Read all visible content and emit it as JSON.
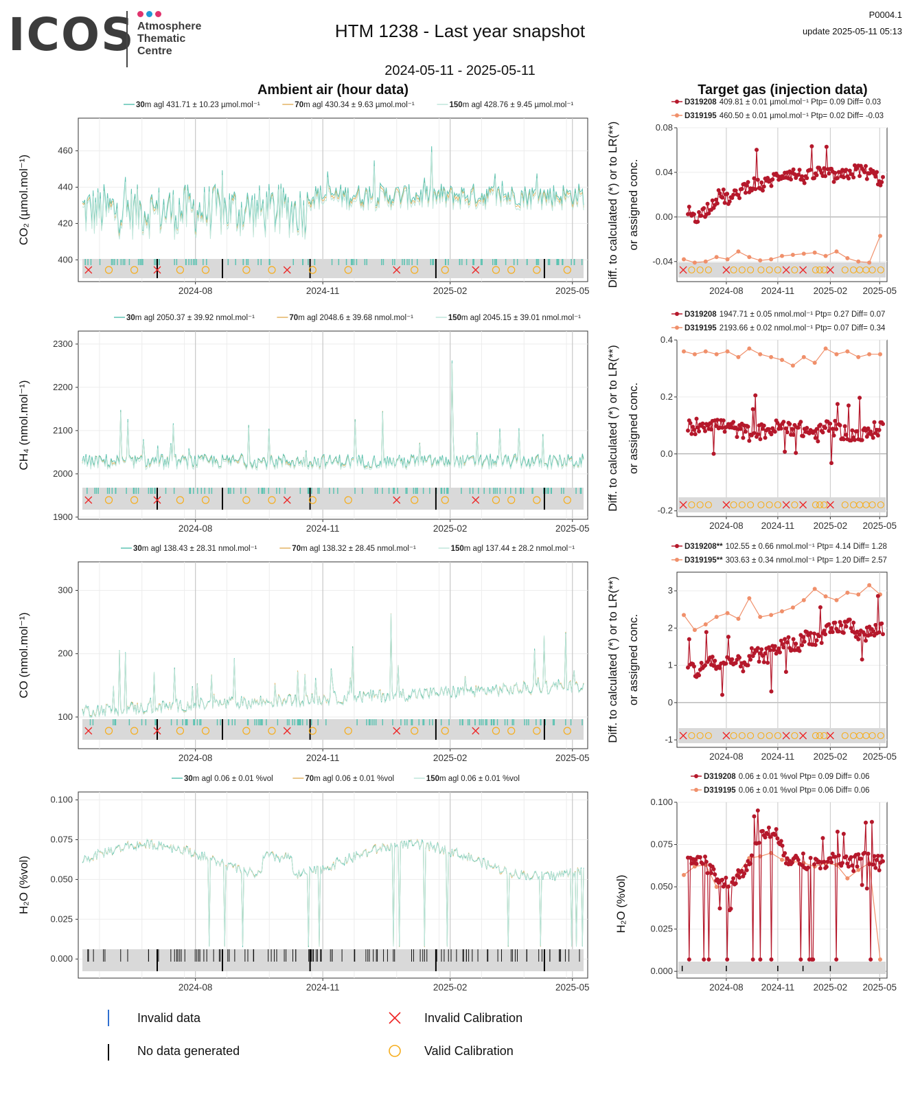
{
  "header": {
    "logo_word": "ICOS",
    "logo_sub": [
      "Atmosphere",
      "Thematic",
      "Centre"
    ],
    "title": "HTM 1238 - Last year snapshot",
    "date_range": "2024-05-11 - 2025-05-11",
    "code": "P0004.1",
    "update": "update  2025-05-11 05:13"
  },
  "sections": {
    "ambient_title": "Ambient air (hour data)",
    "target_title": "Target gas (injection data)"
  },
  "colors": {
    "m30": "#5cc3b2",
    "m70": "#e3b464",
    "m150": "#bfe6db",
    "t208": "#b5182b",
    "t195": "#f0906b",
    "cal_invalid": "#ee2222",
    "cal_valid": "#f6ad1c",
    "band": "#d9d9d9",
    "grid_major": "#c8c8c8",
    "grid_minor": "#ececec"
  },
  "x_ticks": [
    "2024-08",
    "2024-11",
    "2025-02",
    "2025-05"
  ],
  "legends": {
    "co2": [
      {
        "label": "30",
        "text": "m agl 431.71 ± 10.23 µmol.mol⁻¹"
      },
      {
        "label": "70",
        "text": "m agl 430.34 ± 9.63 µmol.mol⁻¹"
      },
      {
        "label": "150",
        "text": "m agl 428.76 ± 9.45 µmol.mol⁻¹"
      }
    ],
    "ch4": [
      {
        "label": "30",
        "text": "m agl 2050.37 ± 39.92 nmol.mol⁻¹"
      },
      {
        "label": "70",
        "text": "m agl 2048.6 ± 39.68 nmol.mol⁻¹"
      },
      {
        "label": "150",
        "text": "m agl 2045.15 ± 39.01 nmol.mol⁻¹"
      }
    ],
    "co": [
      {
        "label": "30",
        "text": "m agl 138.43 ± 28.31 nmol.mol⁻¹"
      },
      {
        "label": "70",
        "text": "m agl 138.32 ± 28.45 nmol.mol⁻¹"
      },
      {
        "label": "150",
        "text": "m agl 137.44 ± 28.2 nmol.mol⁻¹"
      }
    ],
    "h2o": [
      {
        "label": "30",
        "text": "m agl 0.06 ± 0.01 %vol"
      },
      {
        "label": "70",
        "text": "m agl 0.06 ± 0.01 %vol"
      },
      {
        "label": "150",
        "text": "m agl 0.06 ± 0.01 %vol"
      }
    ]
  },
  "target_legends": {
    "co2": [
      {
        "id": "D319208",
        "text": "409.81 ± 0.01 µmol.mol⁻¹ Ptp= 0.09 Diff= 0.03"
      },
      {
        "id": "D319195",
        "text": "460.50 ± 0.01 µmol.mol⁻¹ Ptp= 0.02 Diff= -0.03"
      }
    ],
    "ch4": [
      {
        "id": "D319208",
        "text": "1947.71 ± 0.05 nmol.mol⁻¹ Ptp= 0.27 Diff= 0.07"
      },
      {
        "id": "D319195",
        "text": "2193.66 ± 0.02 nmol.mol⁻¹ Ptp= 0.07 Diff= 0.34"
      }
    ],
    "co": [
      {
        "id": "D319208**",
        "text": "102.55 ± 0.66 nmol.mol⁻¹ Ptp= 4.14 Diff= 1.28"
      },
      {
        "id": "D319195**",
        "text": "303.63 ± 0.34 nmol.mol⁻¹ Ptp= 1.20 Diff= 2.57"
      }
    ],
    "h2o": [
      {
        "id": "D319208",
        "text": "0.06 ± 0.01 %vol Ptp= 0.09 Diff= 0.06"
      },
      {
        "id": "D319195",
        "text": "0.06 ± 0.01 %vol Ptp= 0.06 Diff= 0.06"
      }
    ]
  },
  "y_labels": {
    "co2": "CO₂ (µmol.mol⁻¹)",
    "ch4": "CH₄ (nmol.mol⁻¹)",
    "co": "CO (nmol.mol⁻¹)",
    "h2o": "H₂O (%vol)",
    "diff_line1": "Diff. to calculated (*) or to LR(**)",
    "diff_line2": "or assigned conc.",
    "h2o_target": "H₂O (%vol)"
  },
  "bottom_legend": {
    "invalid_data": "Invalid data",
    "no_data": "No data generated",
    "invalid_cal": "Invalid Calibration",
    "valid_cal": "Valid Calibration"
  },
  "chart_data": [
    {
      "id": "co2_ambient",
      "type": "line",
      "ylim": [
        388,
        478
      ],
      "yticks": [
        400,
        420,
        440,
        460
      ],
      "grid": true,
      "series": [
        {
          "name": "30m agl",
          "mean": 431.71,
          "sd": 10.23
        },
        {
          "name": "70m agl",
          "mean": 430.34,
          "sd": 9.63
        },
        {
          "name": "150m agl",
          "mean": 428.76,
          "sd": 9.45
        }
      ]
    },
    {
      "id": "ch4_ambient",
      "type": "line",
      "ylim": [
        1895,
        2330
      ],
      "yticks": [
        1900,
        2000,
        2100,
        2200,
        2300
      ],
      "grid": true,
      "series": [
        {
          "name": "30m agl",
          "mean": 2050.37,
          "sd": 39.92
        },
        {
          "name": "70m agl",
          "mean": 2048.6,
          "sd": 39.68
        },
        {
          "name": "150m agl",
          "mean": 2045.15,
          "sd": 39.01
        }
      ]
    },
    {
      "id": "co_ambient",
      "type": "line",
      "ylim": [
        50,
        345
      ],
      "yticks": [
        100,
        200,
        300
      ],
      "grid": true,
      "series": [
        {
          "name": "30m agl",
          "mean": 138.43,
          "sd": 28.31
        },
        {
          "name": "70m agl",
          "mean": 138.32,
          "sd": 28.45
        },
        {
          "name": "150m agl",
          "mean": 137.44,
          "sd": 28.2
        }
      ]
    },
    {
      "id": "h2o_ambient",
      "type": "line",
      "ylim": [
        -0.012,
        0.105
      ],
      "yticks": [
        0.0,
        0.025,
        0.05,
        0.075,
        0.1
      ],
      "grid": true,
      "series": [
        {
          "name": "30m agl",
          "mean": 0.06,
          "sd": 0.01
        },
        {
          "name": "70m agl",
          "mean": 0.06,
          "sd": 0.01
        },
        {
          "name": "150m agl",
          "mean": 0.06,
          "sd": 0.01
        }
      ]
    },
    {
      "id": "co2_target",
      "type": "line",
      "ylim": [
        -0.058,
        0.08
      ],
      "yticks": [
        -0.04,
        0.0,
        0.04,
        0.08
      ],
      "grid": true,
      "series": [
        {
          "name": "D319208",
          "values": [
            0.005,
            0.0,
            0.01,
            0.02,
            0.015,
            0.025,
            0.03,
            0.028,
            0.035,
            0.04,
            0.038,
            0.035,
            0.04,
            0.038,
            0.035,
            0.04,
            0.042,
            0.038,
            0.032
          ]
        },
        {
          "name": "D319195",
          "values": [
            -0.038,
            -0.041,
            -0.04,
            -0.036,
            -0.038,
            -0.031,
            -0.036,
            -0.039,
            -0.038,
            -0.035,
            -0.034,
            -0.033,
            -0.032,
            -0.035,
            -0.031,
            -0.037,
            -0.04,
            -0.041,
            -0.017
          ]
        }
      ]
    },
    {
      "id": "ch4_target",
      "type": "line",
      "ylim": [
        -0.22,
        0.4
      ],
      "yticks": [
        -0.2,
        0.0,
        0.2,
        0.4
      ],
      "grid": true,
      "series": [
        {
          "name": "D319208",
          "values": [
            0.09,
            0.1,
            0.11,
            0.1,
            0.09,
            0.08,
            0.07,
            0.08,
            0.09,
            0.1,
            0.09,
            0.08,
            0.07,
            0.1,
            0.08,
            0.07,
            0.06,
            0.08,
            0.1
          ]
        },
        {
          "name": "D319195",
          "values": [
            0.36,
            0.35,
            0.36,
            0.35,
            0.36,
            0.34,
            0.37,
            0.35,
            0.34,
            0.33,
            0.31,
            0.34,
            0.32,
            0.37,
            0.35,
            0.36,
            0.34,
            0.35,
            0.35
          ]
        }
      ]
    },
    {
      "id": "co_target",
      "type": "line",
      "ylim": [
        -1.2,
        3.5
      ],
      "yticks": [
        -1,
        0,
        1,
        2,
        3
      ],
      "grid": true,
      "series": [
        {
          "name": "D319208",
          "values": [
            1.0,
            0.8,
            1.2,
            0.9,
            1.1,
            1.0,
            1.3,
            1.2,
            1.4,
            1.6,
            1.5,
            1.8,
            1.7,
            1.9,
            2.0,
            2.1,
            1.8,
            1.9,
            2.0
          ]
        },
        {
          "name": "D319195",
          "values": [
            2.35,
            1.95,
            2.1,
            2.3,
            2.4,
            2.25,
            2.8,
            2.3,
            2.35,
            2.45,
            2.55,
            2.75,
            3.05,
            2.85,
            2.75,
            2.95,
            2.9,
            3.15,
            2.9
          ]
        }
      ]
    },
    {
      "id": "h2o_target",
      "type": "line",
      "ylim": [
        -0.004,
        0.1
      ],
      "yticks": [
        0.0,
        0.025,
        0.05,
        0.075,
        0.1
      ],
      "grid": true,
      "series": [
        {
          "name": "D319208",
          "values": [
            0.065,
            0.068,
            0.06,
            0.055,
            0.052,
            0.06,
            0.068,
            0.082,
            0.085,
            0.068,
            0.066,
            0.065,
            0.063,
            0.066,
            0.065,
            0.063,
            0.066,
            0.065,
            0.064
          ]
        },
        {
          "name": "D319195",
          "values": [
            0.057,
            0.062,
            0.063,
            0.05,
            0.05,
            0.058,
            0.067,
            0.068,
            0.07,
            0.066,
            0.065,
            0.064,
            0.062,
            0.064,
            0.063,
            0.055,
            0.06,
            0.064,
            0.007
          ]
        }
      ]
    }
  ]
}
